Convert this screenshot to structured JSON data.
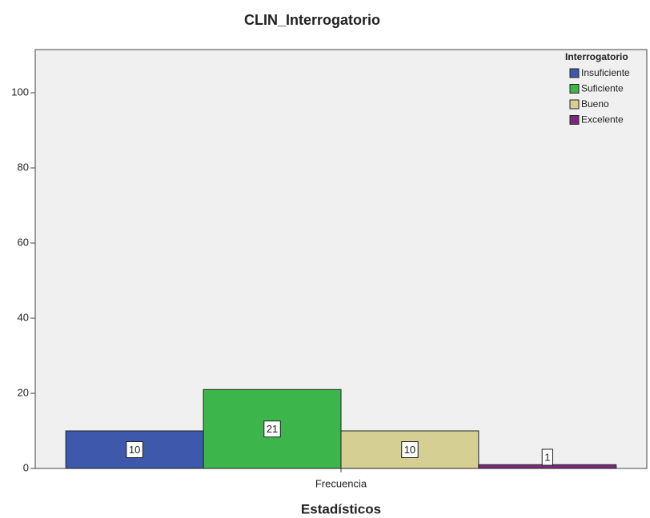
{
  "chart_data": {
    "type": "bar",
    "title": "CLIN_Interrogatorio",
    "xlabel": "Estadísticos",
    "categories": [
      "Frecuencia"
    ],
    "legend_title": "Interrogatorio",
    "legend": "upper right",
    "series": [
      {
        "name": "Insuficiente",
        "color": "#3e58ac",
        "values": [
          10
        ]
      },
      {
        "name": "Suficiente",
        "color": "#3cb54a",
        "values": [
          21
        ]
      },
      {
        "name": "Bueno",
        "color": "#d5cf94",
        "values": [
          10
        ]
      },
      {
        "name": "Excelente",
        "color": "#7b2a7b",
        "values": [
          1
        ]
      }
    ],
    "ylim": [
      0,
      111.5
    ],
    "yticks": [
      0,
      20,
      40,
      60,
      80,
      100
    ],
    "grid": false
  }
}
